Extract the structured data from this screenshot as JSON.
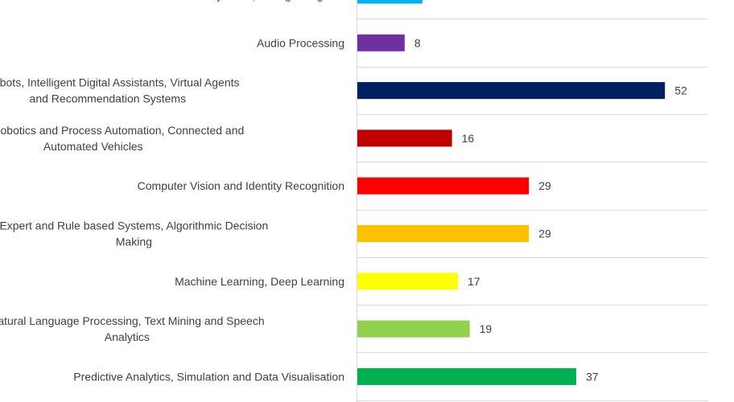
{
  "chart_data": {
    "type": "bar",
    "orientation": "horizontal",
    "categories": [
      "Autonomous Systems, Intelligent Agents",
      "Audio Processing",
      "Chatbots, Intelligent Digital Assistants, Virtual Agents and Recommendation Systems",
      "Cognitive Robotics and Process Automation, Connected and Automated Vehicles",
      "Computer Vision and Identity Recognition",
      "Expert and Rule based Systems, Algorithmic Decision Making",
      "Machine Learning, Deep Learning",
      "Natural Language Processing, Text Mining and Speech Analytics",
      "Predictive Analytics, Simulation and Data Visualisation"
    ],
    "values": [
      11,
      8,
      52,
      16,
      29,
      29,
      17,
      19,
      37
    ],
    "colors": [
      "#00b0f0",
      "#7030a0",
      "#002060",
      "#c00000",
      "#ff0000",
      "#ffc000",
      "#ffff00",
      "#92d050",
      "#00b050"
    ],
    "xlim": [
      0,
      60
    ],
    "grid": true
  }
}
